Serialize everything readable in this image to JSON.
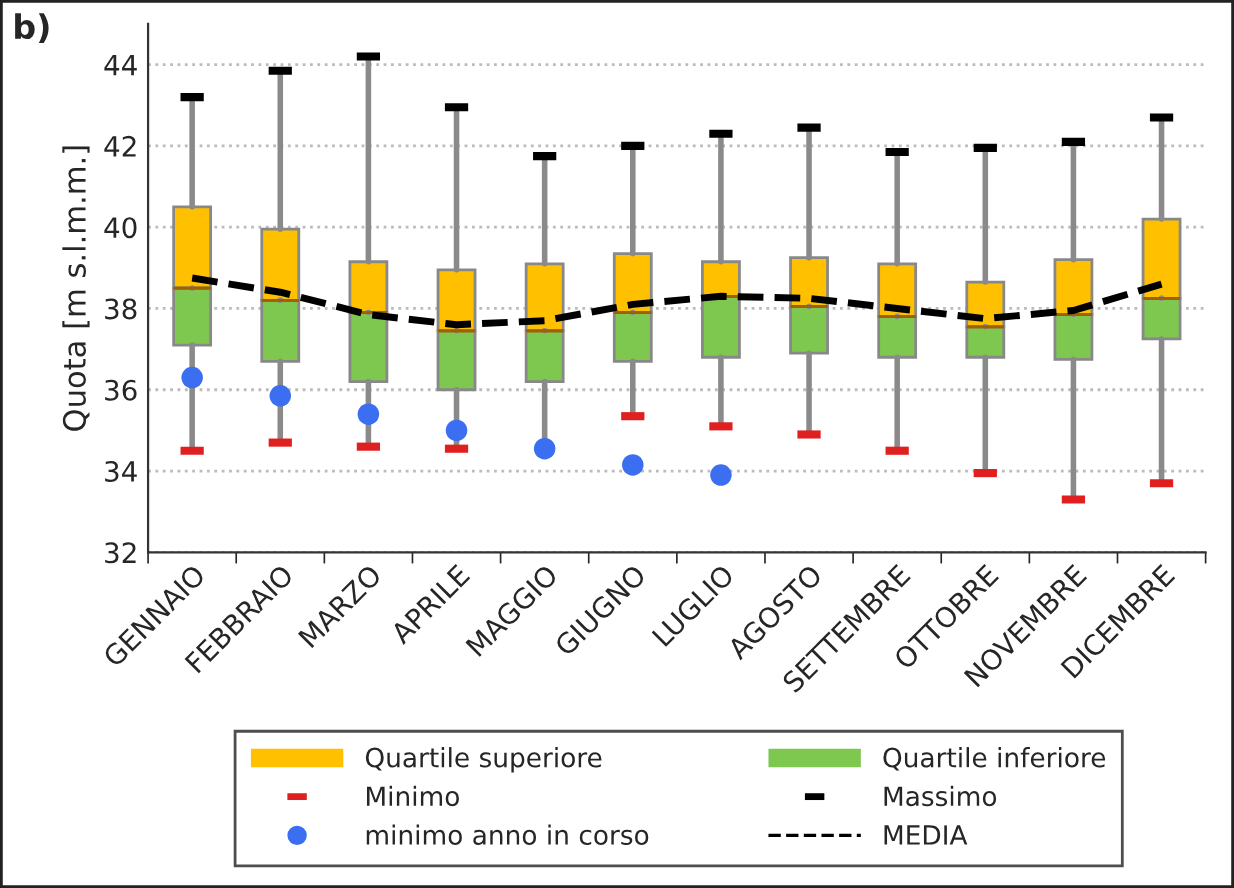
{
  "chart_data": {
    "type": "box",
    "ylabel": "Quota [m s.l.m.m.]",
    "annotations": [
      "b)"
    ],
    "categories": [
      "GENNAIO",
      "FEBBRAIO",
      "MARZO",
      "APRILE",
      "MAGGIO",
      "GIUGNO",
      "LUGLIO",
      "AGOSTO",
      "SETTEMBRE",
      "OTTOBRE",
      "NOVEMBRE",
      "DICEMBRE"
    ],
    "series": [
      {
        "name": "Quartile superiore",
        "color": "#ffc000",
        "boxes": [
          {
            "low": 38.5,
            "q1": 38.5,
            "median": 38.5,
            "q3": 40.5,
            "high": 43.2
          },
          {
            "low": 38.2,
            "q1": 38.2,
            "median": 38.2,
            "q3": 39.95,
            "high": 43.85
          },
          {
            "low": 37.9,
            "q1": 37.9,
            "median": 37.9,
            "q3": 39.15,
            "high": 44.2
          },
          {
            "low": 37.45,
            "q1": 37.45,
            "median": 37.45,
            "q3": 38.95,
            "high": 42.95
          },
          {
            "low": 37.45,
            "q1": 37.45,
            "median": 37.45,
            "q3": 39.1,
            "high": 41.75
          },
          {
            "low": 37.9,
            "q1": 37.9,
            "median": 37.9,
            "q3": 39.35,
            "high": 42.0
          },
          {
            "low": 38.3,
            "q1": 38.3,
            "median": 38.3,
            "q3": 39.15,
            "high": 42.3
          },
          {
            "low": 38.05,
            "q1": 38.05,
            "median": 38.05,
            "q3": 39.25,
            "high": 42.45
          },
          {
            "low": 37.8,
            "q1": 37.8,
            "median": 37.8,
            "q3": 39.1,
            "high": 41.85
          },
          {
            "low": 37.55,
            "q1": 37.55,
            "median": 37.55,
            "q3": 38.65,
            "high": 41.95
          },
          {
            "low": 37.85,
            "q1": 37.85,
            "median": 37.85,
            "q3": 39.2,
            "high": 42.1
          },
          {
            "low": 38.25,
            "q1": 38.25,
            "median": 38.25,
            "q3": 40.2,
            "high": 42.7
          }
        ]
      },
      {
        "name": "Quartile inferiore",
        "color": "#7ec850",
        "boxes": [
          {
            "low": 34.5,
            "q1": 37.1,
            "median": 38.5,
            "q3": 38.5,
            "high": 38.5
          },
          {
            "low": 34.7,
            "q1": 36.7,
            "median": 38.2,
            "q3": 38.2,
            "high": 38.2
          },
          {
            "low": 34.6,
            "q1": 36.2,
            "median": 37.9,
            "q3": 37.9,
            "high": 37.9
          },
          {
            "low": 34.55,
            "q1": 36.0,
            "median": 37.45,
            "q3": 37.45,
            "high": 37.45
          },
          {
            "low": 34.55,
            "q1": 36.2,
            "median": 37.45,
            "q3": 37.45,
            "high": 37.45
          },
          {
            "low": 35.35,
            "q1": 36.7,
            "median": 37.9,
            "q3": 37.9,
            "high": 37.9
          },
          {
            "low": 35.1,
            "q1": 36.8,
            "median": 38.3,
            "q3": 38.3,
            "high": 38.3
          },
          {
            "low": 34.9,
            "q1": 36.9,
            "median": 38.05,
            "q3": 38.05,
            "high": 38.05
          },
          {
            "low": 34.5,
            "q1": 36.8,
            "median": 37.8,
            "q3": 37.8,
            "high": 37.8
          },
          {
            "low": 33.95,
            "q1": 36.8,
            "median": 37.55,
            "q3": 37.55,
            "high": 37.55
          },
          {
            "low": 33.3,
            "q1": 36.75,
            "median": 37.85,
            "q3": 37.85,
            "high": 37.85
          },
          {
            "low": 33.7,
            "q1": 37.25,
            "median": 38.25,
            "q3": 38.25,
            "high": 38.25
          }
        ]
      },
      {
        "name": "Minimo",
        "type": "scatter",
        "color": "#e02020",
        "values": [
          34.5,
          34.7,
          34.6,
          34.55,
          null,
          35.35,
          35.1,
          34.9,
          34.5,
          33.95,
          33.3,
          33.7
        ]
      },
      {
        "name": "Massimo",
        "type": "scatter",
        "color": "#000000",
        "values": [
          43.2,
          43.85,
          44.2,
          42.95,
          41.75,
          42.0,
          42.3,
          42.45,
          41.85,
          41.95,
          42.1,
          42.7
        ]
      },
      {
        "name": "minimo anno in corso",
        "type": "scatter",
        "color": "#3b6ef0",
        "marker": "circle",
        "values": [
          36.3,
          35.85,
          35.4,
          35.0,
          34.55,
          34.15,
          33.9,
          null,
          null,
          null,
          null,
          null
        ]
      },
      {
        "name": "MEDIA",
        "type": "line",
        "color": "#000000",
        "line_style": "dashed",
        "values": [
          38.75,
          38.4,
          37.85,
          37.6,
          37.7,
          38.1,
          38.3,
          38.25,
          38.0,
          37.75,
          37.95,
          38.6
        ]
      }
    ],
    "ylim": [
      32,
      45
    ],
    "yticks": [
      32,
      34,
      36,
      38,
      40,
      42,
      44
    ],
    "grid": "y",
    "legend": "bottom"
  }
}
